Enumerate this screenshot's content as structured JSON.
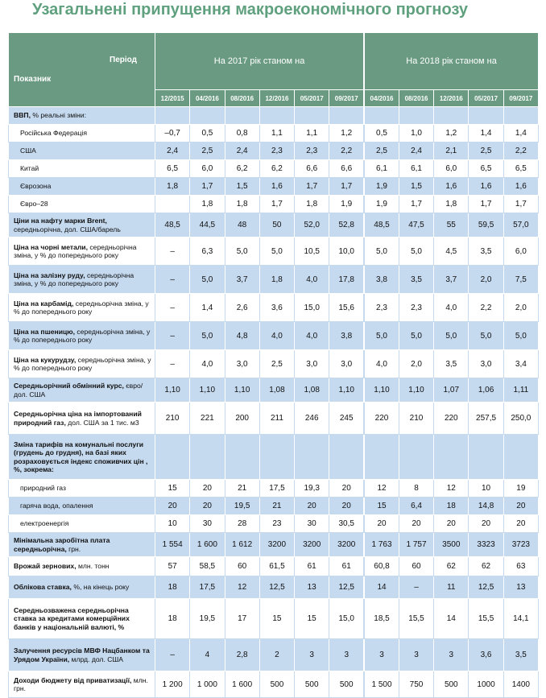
{
  "title": "Узагальнені припущення макроекономічного прогнозу",
  "header": {
    "period": "Період",
    "indicator": "Показник",
    "groups": [
      {
        "label": "На 2017 рік станом на",
        "dates": [
          "12/2015",
          "04/2016",
          "08/2016",
          "12/2016",
          "05/2017",
          "09/2017"
        ]
      },
      {
        "label": "На 2018 рік станом на",
        "dates": [
          "04/2016",
          "08/2016",
          "12/2016",
          "05/2017",
          "09/2017"
        ]
      }
    ]
  },
  "rows": [
    {
      "label": "ВВП,",
      "text": "% реальні зміни:",
      "values": []
    },
    {
      "text": "Російська Федерація",
      "values": [
        "–0,7",
        "0,5",
        "0,8",
        "1,1",
        "1,1",
        "1,2",
        "0,5",
        "1,0",
        "1,2",
        "1,4",
        "1,4"
      ]
    },
    {
      "text": "США",
      "values": [
        "2,4",
        "2,5",
        "2,4",
        "2,3",
        "2,3",
        "2,2",
        "2,5",
        "2,4",
        "2,1",
        "2,5",
        "2,2"
      ]
    },
    {
      "text": "Китай",
      "values": [
        "6,5",
        "6,0",
        "6,2",
        "6,2",
        "6,6",
        "6,6",
        "6,1",
        "6,1",
        "6,0",
        "6,5",
        "6,5"
      ]
    },
    {
      "text": "Єврозона",
      "values": [
        "1,8",
        "1,7",
        "1,5",
        "1,6",
        "1,7",
        "1,7",
        "1,9",
        "1,5",
        "1,6",
        "1,6",
        "1,6"
      ]
    },
    {
      "text": "Євро–28",
      "values": [
        null,
        "1,8",
        "1,8",
        "1,7",
        "1,8",
        "1,9",
        "1,9",
        "1,7",
        "1,8",
        "1,7",
        "1,7"
      ]
    },
    {
      "label": "Ціни на нафту марки Brent,",
      "text": "середньорічна, дол. США/барель",
      "values": [
        "48,5",
        "44,5",
        "48",
        "50",
        "52,0",
        "52,8",
        "48,5",
        "47,5",
        "55",
        "59,5",
        "57,0"
      ]
    },
    {
      "label": "Ціна на чорні метали,",
      "text": "середньорічна зміна, у % до попереднього року",
      "values": [
        "–",
        "6,3",
        "5,0",
        "5,0",
        "10,5",
        "10,0",
        "5,0",
        "5,0",
        "4,5",
        "3,5",
        "6,0"
      ]
    },
    {
      "label": "Ціна на залізну руду,",
      "text": "середньорічна зміна, у % до попереднього року",
      "values": [
        "–",
        "5,0",
        "3,7",
        "1,8",
        "4,0",
        "17,8",
        "3,8",
        "3,5",
        "3,7",
        "2,0",
        "7,5"
      ]
    },
    {
      "label": "Ціна на карбамід,",
      "text": "середньорічна зміна, у % до попереднього року",
      "values": [
        "–",
        "1,4",
        "2,6",
        "3,6",
        "15,0",
        "15,6",
        "2,3",
        "2,3",
        "4,0",
        "2,2",
        "2,0"
      ]
    },
    {
      "label": "Ціна на пшеницю,",
      "text": "середньорічна зміна, у % до попереднього року",
      "values": [
        "–",
        "5,0",
        "4,8",
        "4,0",
        "4,0",
        "3,8",
        "5,0",
        "5,0",
        "5,0",
        "5,0",
        "5,0"
      ]
    },
    {
      "label": "Ціна на кукурудзу,",
      "text": "середньорічна зміна, у % до попереднього року",
      "values": [
        "–",
        "4,0",
        "3,0",
        "2,5",
        "3,0",
        "3,0",
        "4,0",
        "2,0",
        "3,5",
        "3,0",
        "3,4"
      ]
    },
    {
      "label": "Середньорічний обмінний курс,",
      "text": "євро/дол. США",
      "values": [
        "1,10",
        "1,10",
        "1,10",
        "1,08",
        "1,08",
        "1,10",
        "1,10",
        "1,10",
        "1,07",
        "1,06",
        "1,11"
      ]
    },
    {
      "label": "Середньорічна ціна на імпортований природний газ,",
      "text": "дол. США за 1 тис. м3",
      "values": [
        "210",
        "221",
        "200",
        "211",
        "246",
        "245",
        "220",
        "210",
        "220",
        "257,5",
        "250,0"
      ]
    },
    {
      "label": "Зміна тарифів на комунальні послуги (грудень до грудня), на базі яких розраховується індекс споживчих цін , %, зокрема:",
      "values": []
    },
    {
      "text": "природний газ",
      "values": [
        "15",
        "20",
        "21",
        "17,5",
        "19,3",
        "20",
        "12",
        "8",
        "12",
        "10",
        "19"
      ]
    },
    {
      "text": "гаряча вода, опалення",
      "values": [
        "20",
        "20",
        "19,5",
        "21",
        "20",
        "20",
        "15",
        "6,4",
        "18",
        "14,8",
        "20"
      ]
    },
    {
      "text": "електроенергія",
      "values": [
        "10",
        "30",
        "28",
        "23",
        "30",
        "30,5",
        "20",
        "20",
        "20",
        "20",
        "20"
      ]
    },
    {
      "label": "Мінімальна заробітна плата середньорічна,",
      "text": "грн.",
      "values": [
        "1 554",
        "1 600",
        "1 612",
        "3200",
        "3200",
        "3200",
        "1 763",
        "1 757",
        "3500",
        "3323",
        "3723"
      ]
    },
    {
      "label": "Врожай зернових,",
      "text": "млн. тонн",
      "values": [
        "57",
        "58,5",
        "60",
        "61,5",
        "61",
        "61",
        "60,8",
        "60",
        "62",
        "62",
        "63"
      ]
    },
    {
      "label": "Облікова ставка,",
      "text": "%, на кінець року",
      "values": [
        "18",
        "17,5",
        "12",
        "12,5",
        "13",
        "12,5",
        "14",
        "–",
        "11",
        "12,5",
        "13"
      ]
    },
    {
      "label": "Середньозважена середньорічна ставка за кредитами комерційних банків у національній валюті, %",
      "values": [
        "18",
        "19,5",
        "17",
        "15",
        "15",
        "15,0",
        "18,5",
        "15,5",
        "14",
        "15,5",
        "14,1"
      ]
    },
    {
      "label": "Залучення ресурсів МВФ Нацбанком та Урядом України,",
      "text": "млрд. дол. США",
      "values": [
        "–",
        "4",
        "2,8",
        "2",
        "3",
        "3",
        "3",
        "3",
        "3",
        "3,6",
        "3,5"
      ]
    },
    {
      "label": "Доходи бюджету від приватизації,",
      "text": "млн. грн.",
      "values": [
        "1 200",
        "1 000",
        "1 600",
        "500",
        "500",
        "500",
        "1 500",
        "750",
        "500",
        "1000",
        "1400"
      ]
    }
  ]
}
